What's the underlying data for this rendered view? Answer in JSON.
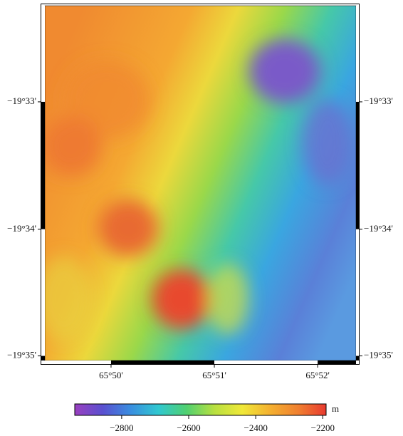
{
  "map": {
    "lat_range": [
      -19.5374,
      -19.5839
    ],
    "lon_range": [
      65.8226,
      65.8729
    ],
    "lat_ticks": [
      {
        "value": -19.55,
        "label": "−19°33'"
      },
      {
        "value": -19.5667,
        "label": "−19°34'"
      },
      {
        "value": -19.5833,
        "label": "−19°35'"
      }
    ],
    "lon_ticks": [
      {
        "value": 65.8333,
        "label": "65°50'"
      },
      {
        "value": 65.85,
        "label": "65°51'"
      },
      {
        "value": 65.8667,
        "label": "65°52'"
      }
    ],
    "colorbar": {
      "unit": "m",
      "range": [
        -2940,
        -2190
      ],
      "colors": [
        "#9a40c0",
        "#5a50d0",
        "#3a8ee0",
        "#30c8d0",
        "#50d070",
        "#b8e040",
        "#f0e838",
        "#f4b030",
        "#f08030",
        "#e83a30"
      ],
      "ticks": [
        {
          "value": -2800,
          "label": "−2800"
        },
        {
          "value": -2600,
          "label": "−2600"
        },
        {
          "value": -2400,
          "label": "−2400"
        },
        {
          "value": -2200,
          "label": "−2200"
        }
      ]
    }
  }
}
